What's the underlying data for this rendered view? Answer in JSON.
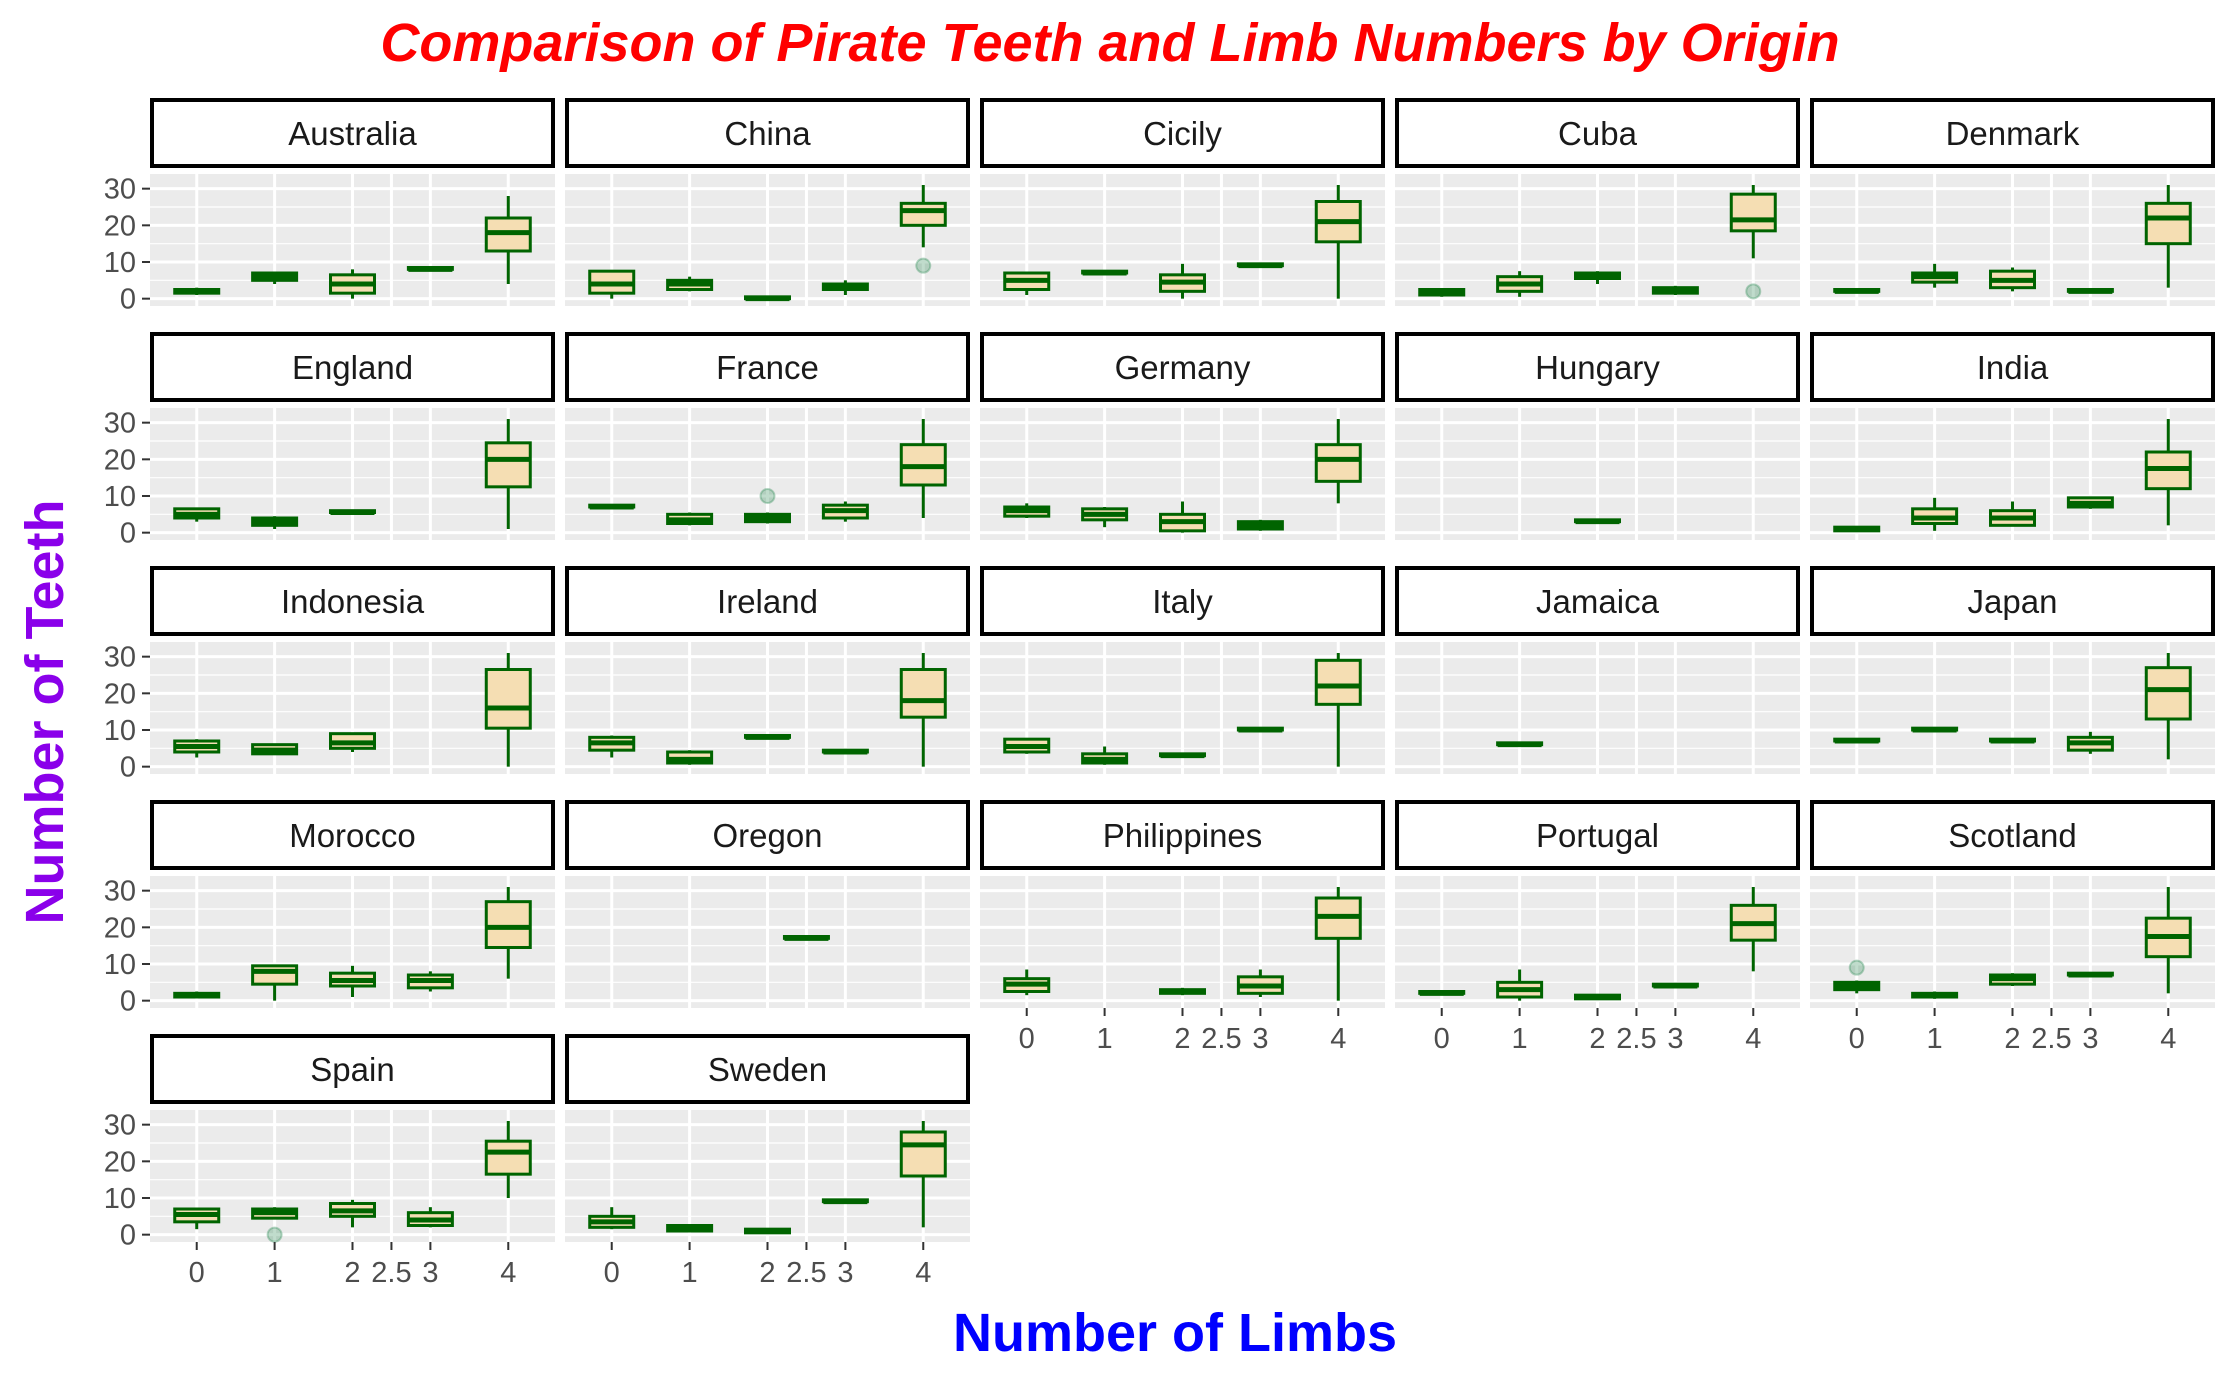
{
  "chart_data": {
    "type": "box",
    "title": "Comparison of Pirate Teeth and Limb Numbers by Origin",
    "xlabel": "Number of Limbs",
    "ylabel": "Number of Teeth",
    "x_ticks": [
      "0",
      "1",
      "2",
      "2.5",
      "3",
      "4"
    ],
    "y_ticks": [
      "0",
      "10",
      "20",
      "30"
    ],
    "ylim": [
      -2,
      34
    ],
    "grid": true,
    "colors": {
      "box_line": "#006400",
      "box_fill": "#f5deb3",
      "panel_bg": "#ebebeb",
      "grid": "#ffffff",
      "strip_border": "#000000",
      "outlier": "#2e8b57"
    },
    "panels": [
      {
        "name": "Australia",
        "boxes": [
          {
            "x": 0,
            "min": 1,
            "q1": 1.5,
            "median": 2,
            "q3": 2.5,
            "max": 3
          },
          {
            "x": 1,
            "min": 4,
            "q1": 5,
            "median": 6,
            "q3": 7,
            "max": 7
          },
          {
            "x": 2,
            "min": 0,
            "q1": 1.5,
            "median": 4,
            "q3": 6.5,
            "max": 8
          },
          {
            "x": 3,
            "min": 7.5,
            "q1": 8,
            "median": 8,
            "q3": 8.5,
            "max": 8.5
          },
          {
            "x": 4,
            "min": 4,
            "q1": 13,
            "median": 18,
            "q3": 22,
            "max": 28
          }
        ],
        "outliers": []
      },
      {
        "name": "China",
        "boxes": [
          {
            "x": 0,
            "min": 0,
            "q1": 1.5,
            "median": 4,
            "q3": 7.5,
            "max": 7.5
          },
          {
            "x": 1,
            "min": 2,
            "q1": 2.5,
            "median": 4,
            "q3": 5,
            "max": 6
          },
          {
            "x": 2,
            "min": 0,
            "q1": 0,
            "median": 0,
            "q3": 0.5,
            "max": 0.5
          },
          {
            "x": 3,
            "min": 1,
            "q1": 2.5,
            "median": 3.5,
            "q3": 4,
            "max": 5
          },
          {
            "x": 4,
            "min": 14,
            "q1": 20,
            "median": 24,
            "q3": 26,
            "max": 31
          }
        ],
        "outliers": [
          {
            "x": 4,
            "y": 9
          }
        ]
      },
      {
        "name": "Cicily",
        "boxes": [
          {
            "x": 0,
            "min": 1,
            "q1": 2.5,
            "median": 5,
            "q3": 7,
            "max": 7
          },
          {
            "x": 1,
            "min": 6.5,
            "q1": 7,
            "median": 7,
            "q3": 7.5,
            "max": 7.5
          },
          {
            "x": 2,
            "min": 0,
            "q1": 2,
            "median": 4.5,
            "q3": 6.5,
            "max": 9.5
          },
          {
            "x": 3,
            "min": 8.5,
            "q1": 9,
            "median": 9,
            "q3": 9.5,
            "max": 9.5
          },
          {
            "x": 4,
            "min": 0,
            "q1": 15.5,
            "median": 21,
            "q3": 26.5,
            "max": 31
          }
        ],
        "outliers": []
      },
      {
        "name": "Cuba",
        "boxes": [
          {
            "x": 0,
            "min": 0.5,
            "q1": 1,
            "median": 2,
            "q3": 2.5,
            "max": 2.5
          },
          {
            "x": 1,
            "min": 0.5,
            "q1": 2,
            "median": 4,
            "q3": 6,
            "max": 7.5
          },
          {
            "x": 2,
            "min": 4,
            "q1": 5.5,
            "median": 6,
            "q3": 7,
            "max": 7.5
          },
          {
            "x": 3,
            "min": 1,
            "q1": 1.5,
            "median": 2,
            "q3": 3,
            "max": 3.5
          },
          {
            "x": 4,
            "min": 11,
            "q1": 18.5,
            "median": 21.5,
            "q3": 28.5,
            "max": 31
          }
        ],
        "outliers": [
          {
            "x": 4,
            "y": 2
          }
        ]
      },
      {
        "name": "Denmark",
        "boxes": [
          {
            "x": 0,
            "min": 1.5,
            "q1": 2,
            "median": 2,
            "q3": 2.5,
            "max": 2.5
          },
          {
            "x": 1,
            "min": 3,
            "q1": 4.5,
            "median": 6,
            "q3": 7,
            "max": 9.5
          },
          {
            "x": 2,
            "min": 2,
            "q1": 3,
            "median": 5,
            "q3": 7.5,
            "max": 8.5
          },
          {
            "x": 3,
            "min": 1.5,
            "q1": 2,
            "median": 2,
            "q3": 2.5,
            "max": 2.5
          },
          {
            "x": 4,
            "min": 3,
            "q1": 15,
            "median": 22,
            "q3": 26,
            "max": 31
          }
        ],
        "outliers": []
      },
      {
        "name": "England",
        "boxes": [
          {
            "x": 0,
            "min": 3,
            "q1": 4,
            "median": 5,
            "q3": 6.5,
            "max": 6.5
          },
          {
            "x": 1,
            "min": 1,
            "q1": 2,
            "median": 3,
            "q3": 4,
            "max": 4.5
          },
          {
            "x": 2,
            "min": 5,
            "q1": 5.5,
            "median": 5.5,
            "q3": 6,
            "max": 6
          },
          {
            "x": 4,
            "min": 1,
            "q1": 12.5,
            "median": 20,
            "q3": 24.5,
            "max": 31
          }
        ],
        "outliers": []
      },
      {
        "name": "France",
        "boxes": [
          {
            "x": 0,
            "min": 6.5,
            "q1": 7,
            "median": 7,
            "q3": 7.5,
            "max": 7.5
          },
          {
            "x": 1,
            "min": 2,
            "q1": 2.5,
            "median": 3.5,
            "q3": 5,
            "max": 5.5
          },
          {
            "x": 2,
            "min": 2.5,
            "q1": 3,
            "median": 4,
            "q3": 5,
            "max": 5.5
          },
          {
            "x": 3,
            "min": 3,
            "q1": 4,
            "median": 6,
            "q3": 7.5,
            "max": 8.5
          },
          {
            "x": 4,
            "min": 4,
            "q1": 13,
            "median": 18,
            "q3": 24,
            "max": 31
          }
        ],
        "outliers": [
          {
            "x": 2,
            "y": 10
          }
        ]
      },
      {
        "name": "Germany",
        "boxes": [
          {
            "x": 0,
            "min": 4,
            "q1": 4.5,
            "median": 6,
            "q3": 7,
            "max": 8
          },
          {
            "x": 1,
            "min": 1.5,
            "q1": 3.5,
            "median": 5,
            "q3": 6.5,
            "max": 7
          },
          {
            "x": 2,
            "min": 0,
            "q1": 0.5,
            "median": 3,
            "q3": 5,
            "max": 8.5
          },
          {
            "x": 3,
            "min": 0.5,
            "q1": 1,
            "median": 2,
            "q3": 3,
            "max": 3.5
          },
          {
            "x": 4,
            "min": 8,
            "q1": 14,
            "median": 20,
            "q3": 24,
            "max": 31
          }
        ],
        "outliers": []
      },
      {
        "name": "Hungary",
        "boxes": [
          {
            "x": 2,
            "min": 3,
            "q1": 3,
            "median": 3,
            "q3": 3.5,
            "max": 3.5
          }
        ],
        "outliers": []
      },
      {
        "name": "India",
        "boxes": [
          {
            "x": 0,
            "min": 0.5,
            "q1": 0.5,
            "median": 1,
            "q3": 1.5,
            "max": 1.5
          },
          {
            "x": 1,
            "min": 0.5,
            "q1": 2.5,
            "median": 4,
            "q3": 6.5,
            "max": 9.5
          },
          {
            "x": 2,
            "min": 2,
            "q1": 2,
            "median": 4,
            "q3": 6,
            "max": 8.5
          },
          {
            "x": 3,
            "min": 6.5,
            "q1": 7,
            "median": 8,
            "q3": 9.5,
            "max": 9.5
          },
          {
            "x": 4,
            "min": 2,
            "q1": 12,
            "median": 17.5,
            "q3": 22,
            "max": 31
          }
        ],
        "outliers": []
      },
      {
        "name": "Indonesia",
        "boxes": [
          {
            "x": 0,
            "min": 2.5,
            "q1": 4,
            "median": 5.5,
            "q3": 7,
            "max": 7.5
          },
          {
            "x": 1,
            "min": 3.5,
            "q1": 3.5,
            "median": 4.5,
            "q3": 6,
            "max": 6
          },
          {
            "x": 2,
            "min": 4,
            "q1": 5,
            "median": 6.5,
            "q3": 9,
            "max": 9
          },
          {
            "x": 4,
            "min": 0,
            "q1": 10.5,
            "median": 16,
            "q3": 26.5,
            "max": 31
          }
        ],
        "outliers": []
      },
      {
        "name": "Ireland",
        "boxes": [
          {
            "x": 0,
            "min": 2.5,
            "q1": 4.5,
            "median": 6.5,
            "q3": 8,
            "max": 8.5
          },
          {
            "x": 1,
            "min": 0.5,
            "q1": 1,
            "median": 2,
            "q3": 4,
            "max": 4.5
          },
          {
            "x": 2,
            "min": 7.5,
            "q1": 8,
            "median": 8,
            "q3": 8.5,
            "max": 8.5
          },
          {
            "x": 3,
            "min": 3.5,
            "q1": 4,
            "median": 4,
            "q3": 4.5,
            "max": 4.5
          },
          {
            "x": 4,
            "min": 0,
            "q1": 13.5,
            "median": 18,
            "q3": 26.5,
            "max": 31
          }
        ],
        "outliers": []
      },
      {
        "name": "Italy",
        "boxes": [
          {
            "x": 0,
            "min": 3.5,
            "q1": 4,
            "median": 5.5,
            "q3": 7.5,
            "max": 7.5
          },
          {
            "x": 1,
            "min": 0.5,
            "q1": 1,
            "median": 2,
            "q3": 3.5,
            "max": 5.5
          },
          {
            "x": 2,
            "min": 2.5,
            "q1": 3,
            "median": 3,
            "q3": 3.5,
            "max": 3.5
          },
          {
            "x": 3,
            "min": 9.5,
            "q1": 10,
            "median": 10,
            "q3": 10.5,
            "max": 10.5
          },
          {
            "x": 4,
            "min": 0,
            "q1": 17,
            "median": 22,
            "q3": 29,
            "max": 31
          }
        ],
        "outliers": []
      },
      {
        "name": "Jamaica",
        "boxes": [
          {
            "x": 1,
            "min": 5.5,
            "q1": 6,
            "median": 6,
            "q3": 6.5,
            "max": 6.5
          }
        ],
        "outliers": []
      },
      {
        "name": "Japan",
        "boxes": [
          {
            "x": 0,
            "min": 6.5,
            "q1": 7,
            "median": 7,
            "q3": 7.5,
            "max": 7.5
          },
          {
            "x": 1,
            "min": 9.5,
            "q1": 10,
            "median": 10,
            "q3": 10.5,
            "max": 10.5
          },
          {
            "x": 2,
            "min": 6.5,
            "q1": 7,
            "median": 7,
            "q3": 7.5,
            "max": 7.5
          },
          {
            "x": 3,
            "min": 3.5,
            "q1": 4.5,
            "median": 6.5,
            "q3": 8,
            "max": 9.5
          },
          {
            "x": 4,
            "min": 2,
            "q1": 13,
            "median": 21,
            "q3": 27,
            "max": 31
          }
        ],
        "outliers": []
      },
      {
        "name": "Morocco",
        "boxes": [
          {
            "x": 0,
            "min": 1,
            "q1": 1,
            "median": 1.5,
            "q3": 2,
            "max": 2.5
          },
          {
            "x": 1,
            "min": 0,
            "q1": 4.5,
            "median": 8,
            "q3": 9.5,
            "max": 9.5
          },
          {
            "x": 2,
            "min": 1,
            "q1": 4,
            "median": 5.5,
            "q3": 7.5,
            "max": 9.5
          },
          {
            "x": 3,
            "min": 2.5,
            "q1": 3.5,
            "median": 5.5,
            "q3": 7,
            "max": 8
          },
          {
            "x": 4,
            "min": 6,
            "q1": 14.5,
            "median": 20,
            "q3": 27,
            "max": 31
          }
        ],
        "outliers": []
      },
      {
        "name": "Oregon",
        "boxes": [
          {
            "x": 2.5,
            "min": 16.5,
            "q1": 17,
            "median": 17,
            "q3": 17.5,
            "max": 17.5
          }
        ],
        "outliers": []
      },
      {
        "name": "Philippines",
        "boxes": [
          {
            "x": 0,
            "min": 1.5,
            "q1": 2.5,
            "median": 4.5,
            "q3": 6,
            "max": 8.5
          },
          {
            "x": 2,
            "min": 1.5,
            "q1": 2,
            "median": 2.5,
            "q3": 3,
            "max": 3.5
          },
          {
            "x": 3,
            "min": 1,
            "q1": 2,
            "median": 4,
            "q3": 6.5,
            "max": 8.5
          },
          {
            "x": 4,
            "min": 0,
            "q1": 17,
            "median": 23,
            "q3": 28,
            "max": 31
          }
        ],
        "outliers": []
      },
      {
        "name": "Portugal",
        "boxes": [
          {
            "x": 0,
            "min": 1.5,
            "q1": 2,
            "median": 2,
            "q3": 2.5,
            "max": 2.5
          },
          {
            "x": 1,
            "min": 0,
            "q1": 1,
            "median": 3,
            "q3": 5,
            "max": 8.5
          },
          {
            "x": 2,
            "min": 0.5,
            "q1": 0.5,
            "median": 1,
            "q3": 1.5,
            "max": 1.5
          },
          {
            "x": 3,
            "min": 3.5,
            "q1": 4,
            "median": 4,
            "q3": 4.5,
            "max": 4.5
          },
          {
            "x": 4,
            "min": 8,
            "q1": 16.5,
            "median": 21,
            "q3": 26,
            "max": 31
          }
        ],
        "outliers": []
      },
      {
        "name": "Scotland",
        "boxes": [
          {
            "x": 0,
            "min": 2,
            "q1": 3,
            "median": 4,
            "q3": 5,
            "max": 5.5
          },
          {
            "x": 1,
            "min": 0.5,
            "q1": 1,
            "median": 1.5,
            "q3": 2,
            "max": 2.5
          },
          {
            "x": 2,
            "min": 4,
            "q1": 4.5,
            "median": 6,
            "q3": 7,
            "max": 7.5
          },
          {
            "x": 3,
            "min": 6.5,
            "q1": 7,
            "median": 7,
            "q3": 7.5,
            "max": 7.5
          },
          {
            "x": 4,
            "min": 2,
            "q1": 12,
            "median": 17.5,
            "q3": 22.5,
            "max": 31
          }
        ],
        "outliers": [
          {
            "x": 0,
            "y": 9
          }
        ]
      },
      {
        "name": "Spain",
        "boxes": [
          {
            "x": 0,
            "min": 1.5,
            "q1": 3.5,
            "median": 5.5,
            "q3": 7,
            "max": 7
          },
          {
            "x": 1,
            "min": 4.5,
            "q1": 4.5,
            "median": 6,
            "q3": 7,
            "max": 7.5
          },
          {
            "x": 2,
            "min": 2,
            "q1": 5,
            "median": 6.5,
            "q3": 8.5,
            "max": 9.5
          },
          {
            "x": 3,
            "min": 2,
            "q1": 2.5,
            "median": 4,
            "q3": 6,
            "max": 7.5
          },
          {
            "x": 4,
            "min": 10,
            "q1": 16.5,
            "median": 22.5,
            "q3": 25.5,
            "max": 31
          }
        ],
        "outliers": [
          {
            "x": 1,
            "y": 0
          }
        ]
      },
      {
        "name": "Sweden",
        "boxes": [
          {
            "x": 0,
            "min": 1.5,
            "q1": 2,
            "median": 3.5,
            "q3": 5,
            "max": 7.5
          },
          {
            "x": 1,
            "min": 1,
            "q1": 1,
            "median": 1.5,
            "q3": 2.5,
            "max": 2.5
          },
          {
            "x": 2,
            "min": 0.5,
            "q1": 0.5,
            "median": 1,
            "q3": 1.5,
            "max": 1.5
          },
          {
            "x": 3,
            "min": 8.5,
            "q1": 9,
            "median": 9,
            "q3": 9.5,
            "max": 9.5
          },
          {
            "x": 4,
            "min": 2,
            "q1": 16,
            "median": 24.5,
            "q3": 28,
            "max": 31
          }
        ],
        "outliers": []
      }
    ]
  }
}
